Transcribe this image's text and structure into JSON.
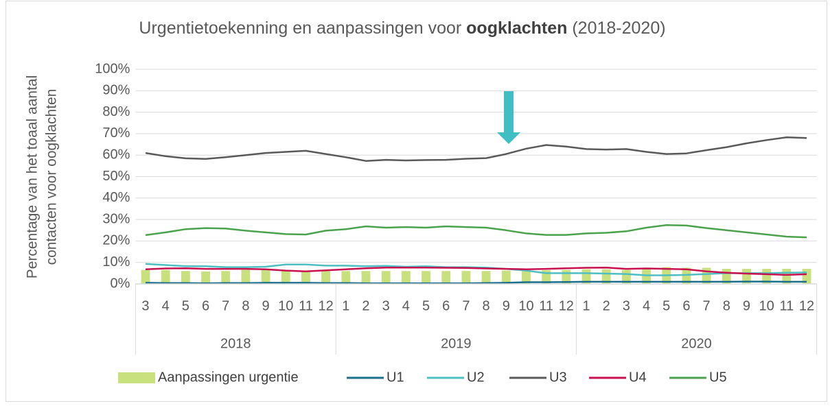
{
  "chart_data": {
    "type": "bar-line",
    "title": [
      "Urgentietoekenning en aanpassingen voor ",
      "oogklachten",
      " (2018-2020)"
    ],
    "ylabel": [
      "Percentage van het toaal aantal",
      "contacten voor oogklachten"
    ],
    "groups": [
      {
        "label": "2018",
        "categories": [
          "3",
          "4",
          "5",
          "6",
          "7",
          "8",
          "9",
          "10",
          "11",
          "12"
        ]
      },
      {
        "label": "2019",
        "categories": [
          "1",
          "2",
          "3",
          "4",
          "5",
          "6",
          "7",
          "8",
          "9",
          "10",
          "11",
          "12"
        ]
      },
      {
        "label": "2020",
        "categories": [
          "1",
          "2",
          "3",
          "4",
          "5",
          "6",
          "7",
          "8",
          "9",
          "10",
          "11",
          "12"
        ]
      }
    ],
    "ylim": [
      0,
      100
    ],
    "yticks": [
      {
        "value": 0,
        "label": "0%"
      },
      {
        "value": 10,
        "label": "10%"
      },
      {
        "value": 20,
        "label": "20%"
      },
      {
        "value": 30,
        "label": "30%"
      },
      {
        "value": 40,
        "label": "40%"
      },
      {
        "value": 50,
        "label": "50%"
      },
      {
        "value": 60,
        "label": "60%"
      },
      {
        "value": 70,
        "label": "70%"
      },
      {
        "value": 80,
        "label": "80%"
      },
      {
        "value": 90,
        "label": "90%"
      },
      {
        "value": 100,
        "label": "100%"
      }
    ],
    "grid": true,
    "legend": "bottom",
    "series": [
      {
        "name": "Aanpassingen urgentie",
        "type": "bar",
        "color": "#c9e07e",
        "values": [
          6.5,
          6.5,
          6,
          5.8,
          6,
          6.5,
          6.8,
          6.3,
          5.6,
          6,
          6,
          6,
          6,
          6,
          6,
          6,
          6,
          6,
          6.2,
          6.3,
          6.4,
          6.5,
          6.8,
          6.8,
          6.5,
          7,
          7.8,
          7.5,
          7.5,
          7,
          7,
          7,
          7,
          7
        ]
      },
      {
        "name": "U1",
        "type": "line",
        "color": "#1a6f8f",
        "values": [
          0.5,
          0.4,
          0.4,
          0.3,
          0.4,
          0.4,
          0.5,
          0.5,
          0.5,
          0.4,
          0.4,
          0.3,
          0.3,
          0.3,
          0.3,
          0.3,
          0.3,
          0.4,
          0.5,
          0.8,
          0.8,
          0.9,
          1,
          1,
          1,
          1,
          1,
          1,
          1,
          1,
          1.1,
          1.1,
          1,
          1
        ]
      },
      {
        "name": "U2",
        "type": "line",
        "color": "#4dbfc2",
        "values": [
          9.3,
          8.8,
          8.2,
          8.2,
          7.8,
          7.8,
          8,
          9,
          9,
          8.5,
          8.5,
          8.2,
          8.4,
          8,
          8.2,
          7.8,
          7.8,
          7.6,
          7,
          6.2,
          5,
          5,
          5,
          4.8,
          4.6,
          4,
          4,
          4.2,
          4.6,
          5,
          5,
          5,
          5.2,
          5.3
        ]
      },
      {
        "name": "U3",
        "type": "line",
        "color": "#595959",
        "values": [
          61,
          59.5,
          58.5,
          58.2,
          59,
          60,
          61,
          61.5,
          62,
          60.5,
          59,
          57.3,
          57.8,
          57.5,
          57.7,
          57.8,
          58.3,
          58.6,
          60.5,
          63,
          64.7,
          64,
          62.8,
          62.6,
          62.8,
          61.5,
          60.5,
          60.8,
          62.3,
          63.7,
          65.5,
          67,
          68.3,
          68
        ]
      },
      {
        "name": "U4",
        "type": "line",
        "color": "#c8104e",
        "values": [
          6.8,
          7.2,
          7.3,
          7,
          7,
          7,
          6.8,
          6.2,
          5.8,
          6.3,
          6.8,
          7.3,
          7.6,
          7.6,
          7.6,
          7.5,
          7.4,
          7.2,
          7,
          6.8,
          7,
          7.3,
          7.5,
          7.6,
          7,
          7.2,
          7,
          6.8,
          5.8,
          5.2,
          4.8,
          4.5,
          4.2,
          4.5
        ]
      },
      {
        "name": "U5",
        "type": "line",
        "color": "#4aa34c",
        "values": [
          22.7,
          24,
          25.5,
          26,
          25.8,
          24.8,
          24,
          23.2,
          23,
          24.8,
          25.5,
          26.8,
          26.2,
          26.5,
          26.2,
          26.8,
          26.5,
          26.2,
          25,
          23.5,
          22.8,
          22.8,
          23.5,
          23.8,
          24.5,
          26.2,
          27.4,
          27.2,
          26,
          25,
          24,
          23,
          22,
          21.7
        ]
      }
    ]
  }
}
